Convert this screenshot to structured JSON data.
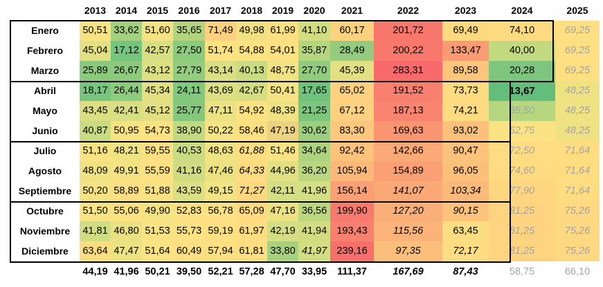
{
  "years": [
    "2013",
    "2014",
    "2015",
    "2016",
    "2017",
    "2018",
    "2019",
    "2020",
    "2021",
    "2022",
    "2023",
    "2024",
    "2025"
  ],
  "rows": [
    {
      "month": "Enero",
      "values": [
        "50,51",
        "33,62",
        "51,60",
        "35,65",
        "71,49",
        "49,98",
        "61,99",
        "41,10",
        "60,17",
        "201,72",
        "69,49",
        "74,10",
        "69,25"
      ],
      "colors": [
        "#f7e383",
        "#a4d17e",
        "#f5e383",
        "#b2d47e",
        "#fdd17f",
        "#f1e183",
        "#fedf81",
        "#d1dd81",
        "#fdd27f",
        "#f8776c",
        "#fed980",
        "#fedb81",
        "#fedf81"
      ]
    },
    {
      "month": "Febrero",
      "values": [
        "45,04",
        "17,12",
        "42,57",
        "27,50",
        "51,74",
        "54,88",
        "54,01",
        "35,87",
        "28,49",
        "200,22",
        "133,47",
        "40,00",
        "69,25"
      ],
      "colors": [
        "#e2e083",
        "#75c57e",
        "#d8df82",
        "#8cca7d",
        "#fee282",
        "#fee282",
        "#fee282",
        "#b5d57f",
        "#93cc7e",
        "#f8796c",
        "#fb9b74",
        "#c3d980",
        "#fedf81"
      ]
    },
    {
      "month": "Marzo",
      "values": [
        "25,89",
        "26,67",
        "43,12",
        "27,79",
        "43,14",
        "40,13",
        "48,75",
        "27,70",
        "45,39",
        "283,31",
        "89,58",
        "20,28",
        "69,25"
      ],
      "colors": [
        "#8bca7d",
        "#8dca7e",
        "#dbe082",
        "#93cc7e",
        "#d9df82",
        "#cbdb81",
        "#f1e383",
        "#91cc7e",
        "#e2e083",
        "#f8696b",
        "#fdc47c",
        "#7ec67d",
        "#fedf81"
      ]
    },
    {
      "month": "Abril",
      "values": [
        "18,17",
        "26,44",
        "45,34",
        "24,11",
        "43,69",
        "42,67",
        "50,41",
        "17,65",
        "65,02",
        "191,52",
        "73,73",
        "13,67",
        "48,25"
      ],
      "colors": [
        "#77c57e",
        "#8dcb7e",
        "#e3e083",
        "#82c87d",
        "#dcdf82",
        "#d6de82",
        "#f6e383",
        "#6fc37d",
        "#fdd17f",
        "#f9806e",
        "#fedb81",
        "#63be7b",
        "#eee283"
      ]
    },
    {
      "month": "Mayo",
      "values": [
        "43,45",
        "42,41",
        "45,12",
        "25,77",
        "47,11",
        "54,92",
        "48,39",
        "21,25",
        "67,12",
        "187,13",
        "74,21",
        "35,50",
        "48,25"
      ],
      "colors": [
        "#dbdf82",
        "#d7df82",
        "#e2e083",
        "#84c77d",
        "#ebe283",
        "#fee282",
        "#eee283",
        "#7bc57d",
        "#fed07f",
        "#f9846f",
        "#fedb81",
        "#b6d67f",
        "#eee283"
      ]
    },
    {
      "month": "Junio",
      "values": [
        "40,87",
        "50,95",
        "54,73",
        "38,90",
        "50,22",
        "58,46",
        "47,19",
        "30,62",
        "83,30",
        "169,63",
        "93,02",
        "52,75",
        "48,25"
      ],
      "colors": [
        "#cadc81",
        "#f8e383",
        "#fee282",
        "#c1d980",
        "#f6e383",
        "#fee082",
        "#edd282",
        "#9bce7e",
        "#fdc87d",
        "#fa9572",
        "#fdc07b",
        "#fbe383",
        "#eee283"
      ]
    },
    {
      "month": "Julio",
      "values": [
        "51,16",
        "48,21",
        "59,55",
        "40,53",
        "48,63",
        "61,88",
        "51,46",
        "34,64",
        "92,42",
        "142,66",
        "90,47",
        "72,50",
        "71,64"
      ],
      "colors": [
        "#f9e383",
        "#efe383",
        "#fee082",
        "#cadb81",
        "#f0e383",
        "#fede81",
        "#f9e383",
        "#aed37f",
        "#fdc27b",
        "#faa977",
        "#fdc37c",
        "#fedc81",
        "#fedd81"
      ]
    },
    {
      "month": "Agosto",
      "values": [
        "48,09",
        "49,91",
        "55,59",
        "41,16",
        "47,46",
        "64,33",
        "44,96",
        "36,20",
        "105,94",
        "154,89",
        "96,05",
        "74,60",
        "71,64"
      ],
      "colors": [
        "#efe283",
        "#f3e383",
        "#fee182",
        "#cfdc81",
        "#ece282",
        "#fddb81",
        "#e1e083",
        "#bad780",
        "#fcb879",
        "#faa074",
        "#fcc07b",
        "#fedb81",
        "#fedd81"
      ]
    },
    {
      "month": "Septiembre",
      "values": [
        "50,20",
        "58,89",
        "51,88",
        "43,59",
        "49,15",
        "71,27",
        "42,11",
        "41,96",
        "156,14",
        "141,07",
        "103,34",
        "77,90",
        "71,64"
      ],
      "colors": [
        "#f5e383",
        "#fee082",
        "#fae283",
        "#dcdf82",
        "#f2e383",
        "#fed880",
        "#d5de82",
        "#d4de82",
        "#faa074",
        "#fba877",
        "#fcba7a",
        "#fed680",
        "#fedd81"
      ]
    },
    {
      "month": "Octubre",
      "values": [
        "51,50",
        "55,06",
        "49,90",
        "52,83",
        "56,78",
        "65,09",
        "47,16",
        "36,56",
        "199,90",
        "127,20",
        "90,15",
        "81,25",
        "75,26"
      ],
      "colors": [
        "#f9e383",
        "#fee282",
        "#f3e383",
        "#fce282",
        "#fee182",
        "#fedb81",
        "#ece282",
        "#bbd780",
        "#f8796d",
        "#fbaf78",
        "#fdc37c",
        "#fed480",
        "#fed981"
      ]
    },
    {
      "month": "Noviembre",
      "values": [
        "41,81",
        "46,80",
        "51,53",
        "55,73",
        "59,19",
        "61,97",
        "42,19",
        "41,94",
        "193,43",
        "115,56",
        "63,45",
        "81,25",
        "75,26"
      ],
      "colors": [
        "#d0dd81",
        "#e9e182",
        "#f9e383",
        "#fee182",
        "#fee082",
        "#fede81",
        "#d4de82",
        "#d2dd81",
        "#f97f6e",
        "#fcb379",
        "#fddd81",
        "#fed480",
        "#fed981"
      ]
    },
    {
      "month": "Diciembre",
      "values": [
        "63,64",
        "47,47",
        "51,64",
        "60,49",
        "57,94",
        "61,81",
        "33,80",
        "41,97",
        "239,16",
        "97,35",
        "72,17",
        "81,25",
        "75,26"
      ],
      "colors": [
        "#fedd81",
        "#ede282",
        "#f9e383",
        "#fedf81",
        "#fee082",
        "#fede81",
        "#a8d17f",
        "#d3dd81",
        "#f86e6b",
        "#fcbf7b",
        "#fedc81",
        "#fed480",
        "#fed981"
      ]
    }
  ],
  "styles": {
    "italic": [
      "8-9",
      "8-10",
      "8-11",
      "8-12",
      "9-9",
      "9-10",
      "9-11",
      "9-12",
      "10-9",
      "10-11",
      "10-12",
      "11-9",
      "11-10",
      "11-11",
      "11-12",
      "6-5",
      "7-5",
      "8-5",
      "11-7",
      "0-12",
      "1-12",
      "2-12",
      "3-12",
      "4-11",
      "4-12",
      "5-11",
      "5-12",
      "6-11",
      "6-12",
      "7-11",
      "7-12"
    ],
    "grey": [
      "0-12",
      "1-12",
      "2-12",
      "3-12",
      "4-11",
      "4-12",
      "5-11",
      "5-12",
      "6-11",
      "6-12",
      "7-11",
      "7-12",
      "8-11",
      "8-12",
      "9-11",
      "9-12",
      "10-11",
      "10-12",
      "11-11",
      "11-12"
    ],
    "bold": [
      "3-11"
    ]
  },
  "totals": [
    "44,19",
    "41,96",
    "50,21",
    "39,50",
    "52,21",
    "57,28",
    "47,70",
    "33,95",
    "111,37",
    "167,69",
    "87,43",
    "58,75",
    "66,10"
  ],
  "totals_style": [
    "n",
    "n",
    "n",
    "n",
    "n",
    "n",
    "n",
    "n",
    "n",
    "i",
    "i",
    "g",
    "g"
  ]
}
